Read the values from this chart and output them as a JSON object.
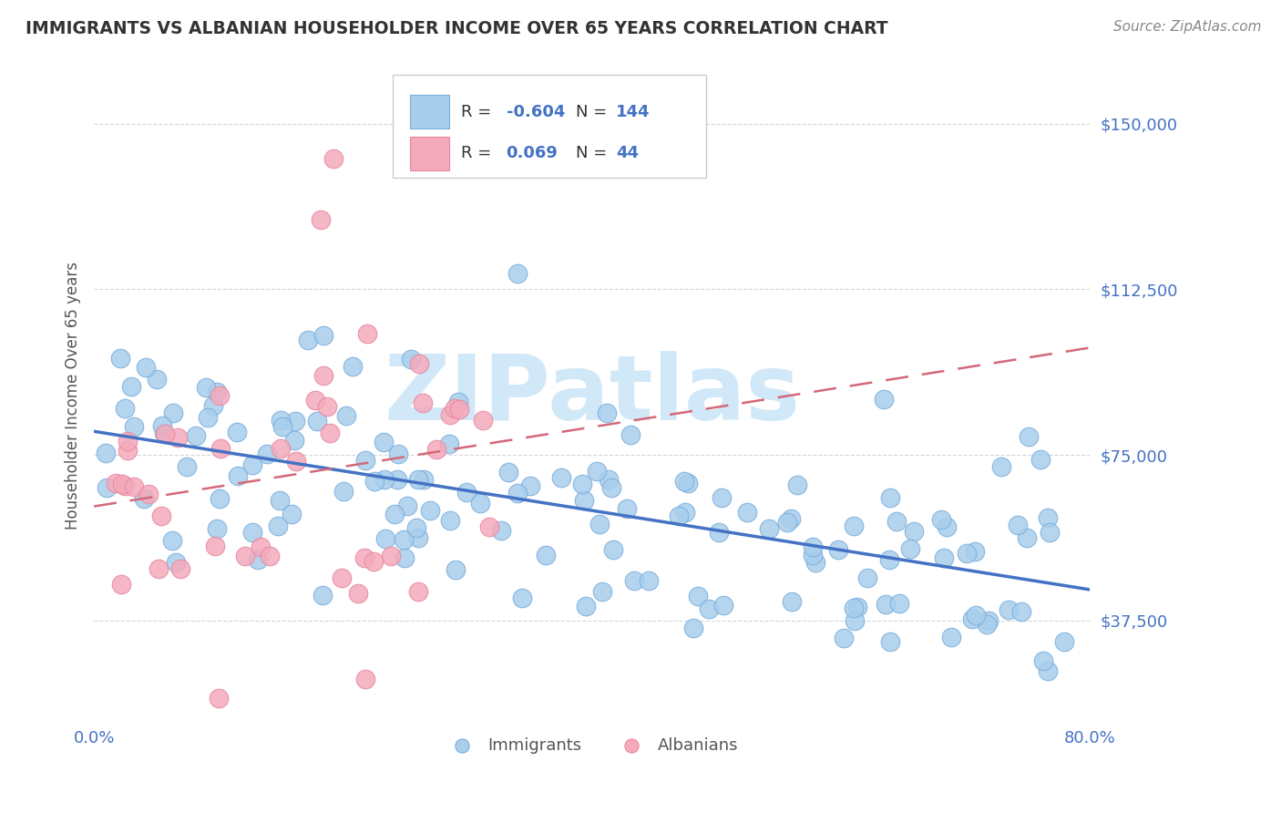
{
  "title": "IMMIGRANTS VS ALBANIAN HOUSEHOLDER INCOME OVER 65 YEARS CORRELATION CHART",
  "source": "Source: ZipAtlas.com",
  "ylabel": "Householder Income Over 65 years",
  "xlim": [
    0.0,
    0.8
  ],
  "ylim": [
    15000,
    162000
  ],
  "yticks": [
    37500,
    75000,
    112500,
    150000
  ],
  "ytick_labels": [
    "$37,500",
    "$75,000",
    "$112,500",
    "$150,000"
  ],
  "xticks": [
    0.0,
    0.1,
    0.2,
    0.3,
    0.4,
    0.5,
    0.6,
    0.7,
    0.8
  ],
  "xtick_labels": [
    "0.0%",
    "",
    "",
    "",
    "",
    "",
    "",
    "",
    "80.0%"
  ],
  "blue_R": -0.604,
  "blue_N": 144,
  "pink_R": 0.069,
  "pink_N": 44,
  "blue_color": "#A8CEEC",
  "pink_color": "#F4AABB",
  "blue_edge_color": "#7AAEDD",
  "pink_edge_color": "#E888A0",
  "blue_line_color": "#4472C4",
  "pink_line_color": "#D46878",
  "title_color": "#333333",
  "axis_label_color": "#555555",
  "tick_label_color": "#4472C4",
  "watermark_text": "ZIPatlas",
  "watermark_color": "#D0E8F8",
  "background_color": "#FFFFFF",
  "grid_color": "#CCCCCC",
  "legend_text_color": "#4472C4",
  "legend_label_color": "#333333"
}
